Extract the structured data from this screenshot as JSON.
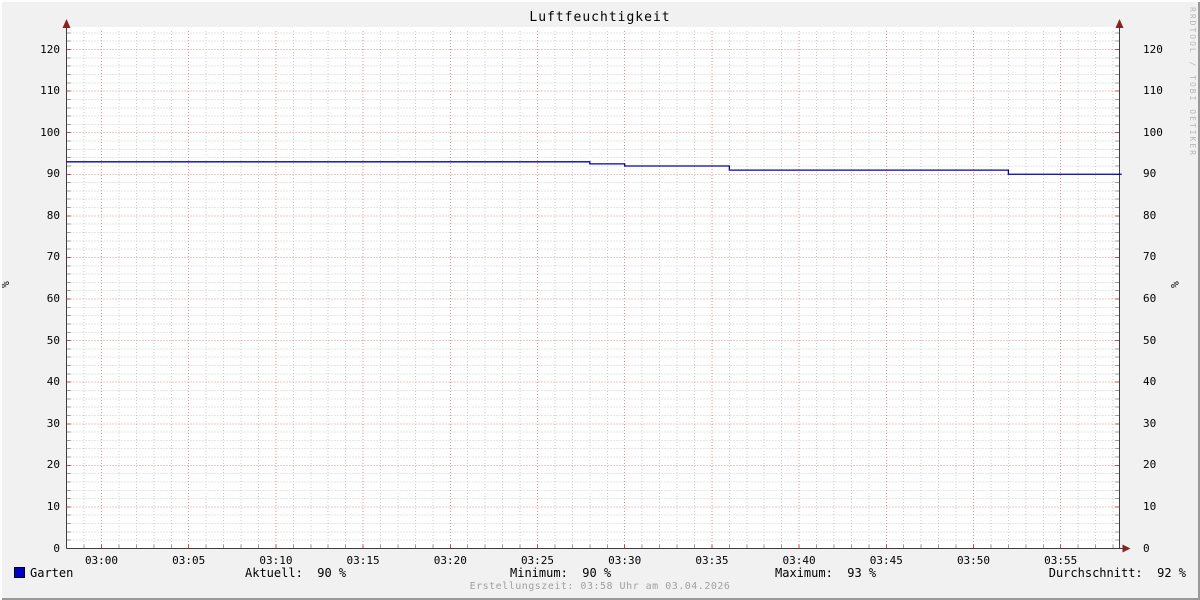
{
  "title": "Luftfeuchtigkeit",
  "watermark": "RRDTOOL / TOBI OETIKER",
  "footer": "Erstellungszeit: 03:58 Uhr am 03.04.2026",
  "y_axis": {
    "unit": "%",
    "ticks": [
      0,
      10,
      20,
      30,
      40,
      50,
      60,
      70,
      80,
      90,
      100,
      110,
      120
    ]
  },
  "x_axis": {
    "labels": [
      "03:00",
      "03:05",
      "03:10",
      "03:15",
      "03:20",
      "03:25",
      "03:30",
      "03:35",
      "03:40",
      "03:45",
      "03:50",
      "03:55"
    ]
  },
  "legend": {
    "series": "Garten",
    "swatch_color": "#0000c8",
    "current": "Aktuell:  90 %",
    "minimum": "Minimum:  90 %",
    "maximum": "Maximum:  93 %",
    "average": "Durchschnitt:  92 %"
  },
  "colors": {
    "line": "#0000b4",
    "grid_major": "#e09090",
    "grid_minor": "#cdcdcd",
    "tick_major": "#cc4444",
    "tick_minor": "#9a9a9a",
    "axis": "#3d3d3d",
    "arrow": "#8b2222",
    "canvas": "#ffffff",
    "background": "#f1f1f1"
  },
  "chart_data": {
    "type": "line",
    "title": "Luftfeuchtigkeit",
    "xlabel": "",
    "ylabel": "%",
    "ylim": [
      0,
      126
    ],
    "y_tick_step_major": 10,
    "y_tick_step_minor": 2,
    "x_tick_step_minor_minutes": 1,
    "x_tick_step_major_minutes": 5,
    "x_range": [
      "02:58",
      "03:58"
    ],
    "grid": "on",
    "legend_position": "bottom",
    "series": [
      {
        "name": "Garten",
        "color": "#0000b4",
        "unit": "%",
        "segments": [
          {
            "start": "02:58",
            "end": "03:28",
            "value": 93
          },
          {
            "start": "03:28",
            "end": "03:30",
            "value": 92.5
          },
          {
            "start": "03:30",
            "end": "03:36",
            "value": 92
          },
          {
            "start": "03:36",
            "end": "03:52",
            "value": 91
          },
          {
            "start": "03:52",
            "end": "03:58",
            "value": 90
          }
        ],
        "stats": {
          "current": 90,
          "minimum": 90,
          "maximum": 93,
          "average": 92
        }
      }
    ]
  }
}
